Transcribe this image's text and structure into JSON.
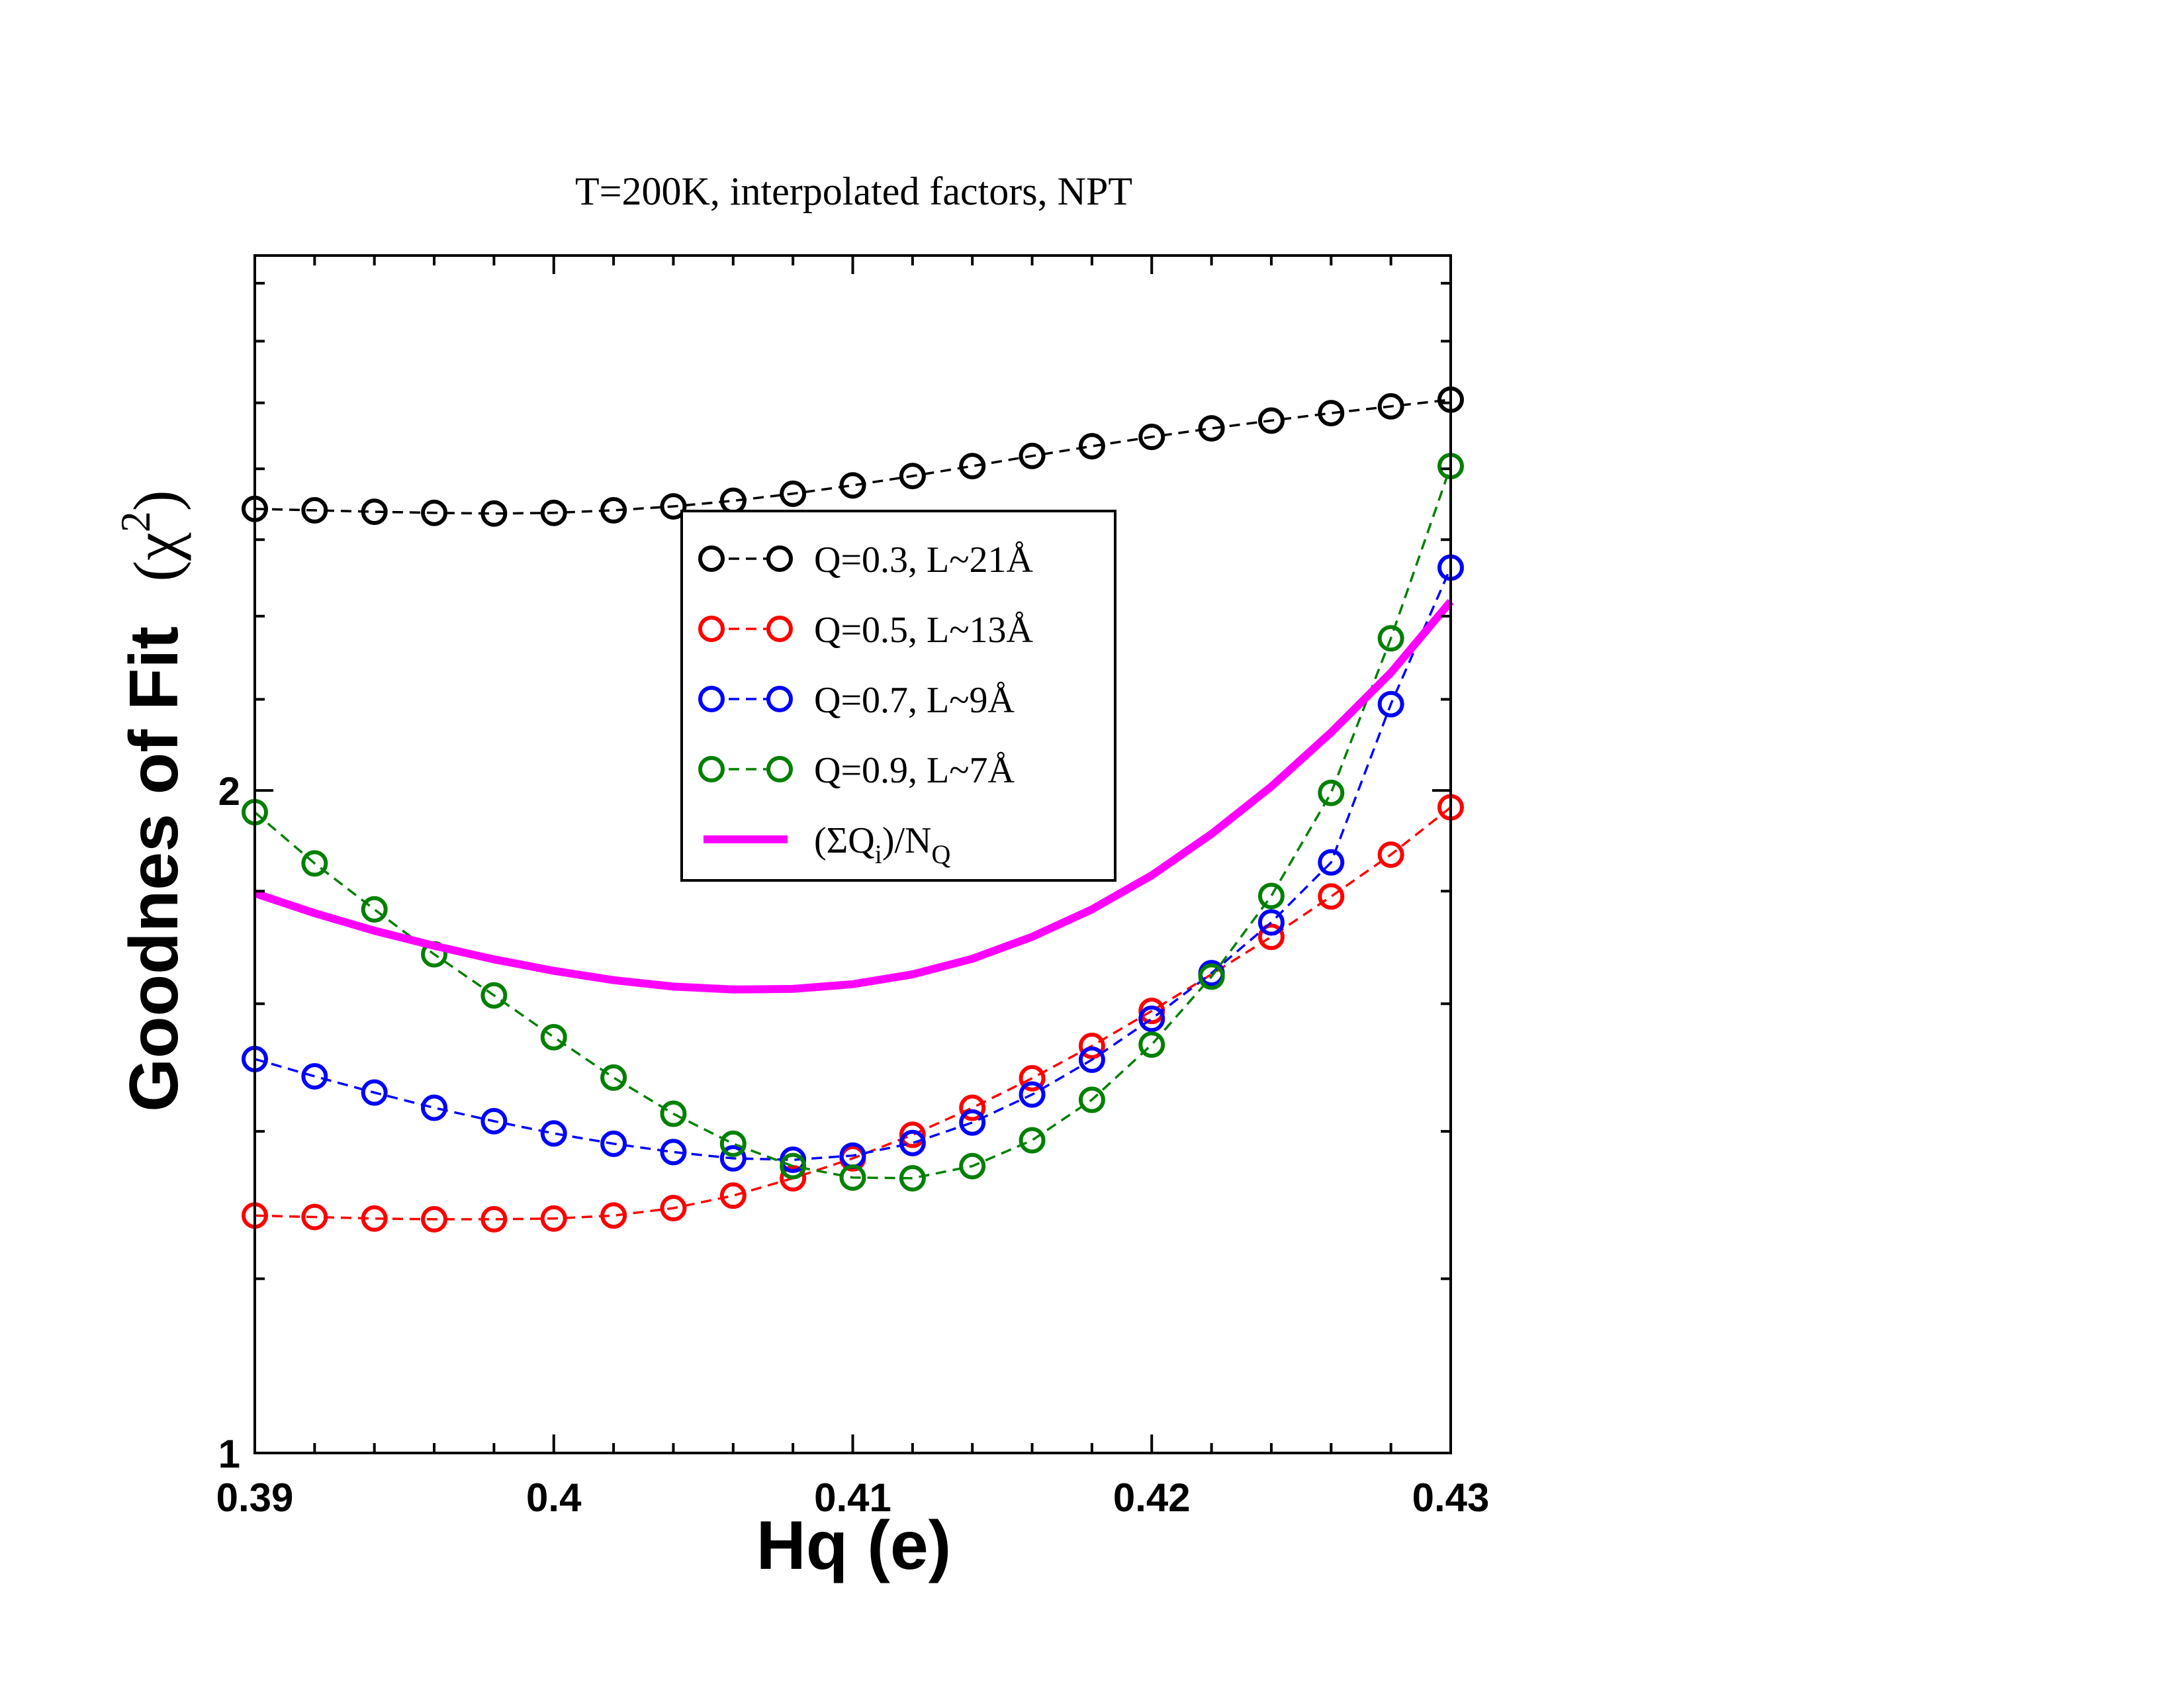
{
  "chart_data": {
    "type": "line",
    "title": "T=200K, interpolated factors, NPT",
    "xlabel": "Hq (e)",
    "ylabel_text": "Goodnes of Fit",
    "ylabel_symbol": "χ",
    "ylabel_exponent": "2",
    "xlim": [
      0.39,
      0.43
    ],
    "ylim": [
      1,
      3.5
    ],
    "y_scale": "log",
    "x_ticks": [
      0.39,
      0.4,
      0.41,
      0.42,
      0.43
    ],
    "x_tick_labels": [
      "0.39",
      "0.4",
      "0.41",
      "0.42",
      "0.43"
    ],
    "y_tick_labels": [
      "1",
      "2"
    ],
    "legend_position": "center",
    "x": [
      0.39,
      0.392,
      0.394,
      0.396,
      0.398,
      0.4,
      0.402,
      0.404,
      0.406,
      0.408,
      0.41,
      0.412,
      0.414,
      0.416,
      0.418,
      0.42,
      0.422,
      0.424,
      0.426,
      0.428,
      0.43
    ],
    "series": [
      {
        "name": "Q=0.3, L~21Å",
        "color": "#000000",
        "style": "dashed-circles",
        "values": [
          2.685,
          2.681,
          2.677,
          2.674,
          2.672,
          2.674,
          2.681,
          2.692,
          2.708,
          2.728,
          2.752,
          2.779,
          2.808,
          2.838,
          2.867,
          2.895,
          2.921,
          2.945,
          2.968,
          2.989,
          3.01
        ]
      },
      {
        "name": "Q=0.5, L~13Å",
        "color": "#ff0000",
        "style": "dashed-circles",
        "values": [
          1.282,
          1.28,
          1.278,
          1.277,
          1.277,
          1.278,
          1.282,
          1.292,
          1.309,
          1.333,
          1.361,
          1.395,
          1.435,
          1.48,
          1.531,
          1.588,
          1.65,
          1.716,
          1.79,
          1.87,
          1.965
        ]
      },
      {
        "name": "Q=0.7, L~9Å",
        "color": "#0000ff",
        "style": "dashed-circles",
        "values": [
          1.51,
          1.483,
          1.458,
          1.435,
          1.415,
          1.397,
          1.382,
          1.37,
          1.361,
          1.359,
          1.365,
          1.383,
          1.413,
          1.455,
          1.509,
          1.575,
          1.652,
          1.742,
          1.855,
          2.189,
          2.525
        ]
      },
      {
        "name": "Q=0.9, L~7Å",
        "color": "#008000",
        "style": "dashed-circles",
        "values": [
          1.955,
          1.853,
          1.766,
          1.685,
          1.614,
          1.545,
          1.481,
          1.426,
          1.382,
          1.35,
          1.334,
          1.333,
          1.35,
          1.387,
          1.447,
          1.533,
          1.646,
          1.791,
          1.995,
          2.345,
          2.808
        ]
      },
      {
        "name": "(ΣQi)/NQ",
        "name_parts": {
          "pre": "(ΣQ",
          "sub1": "i",
          "mid": ")/N",
          "sub2": "Q"
        },
        "color": "#ff00ff",
        "style": "solid-thick",
        "values": [
          1.796,
          1.759,
          1.727,
          1.7,
          1.676,
          1.656,
          1.64,
          1.629,
          1.624,
          1.625,
          1.633,
          1.65,
          1.677,
          1.716,
          1.766,
          1.83,
          1.911,
          2.008,
          2.125,
          2.262,
          2.437
        ]
      }
    ]
  }
}
